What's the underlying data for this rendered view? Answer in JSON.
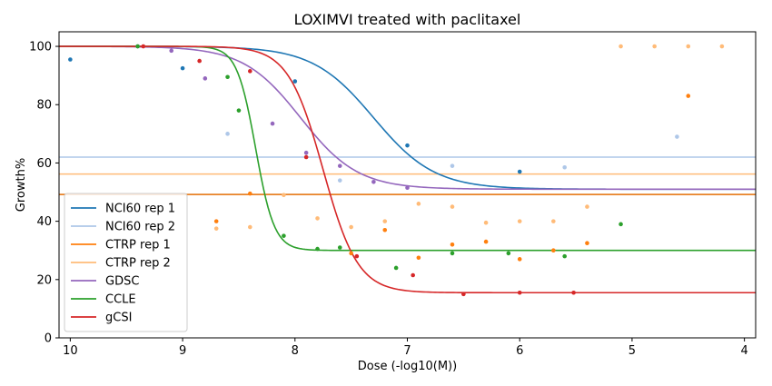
{
  "chart_data": {
    "type": "scatter",
    "title": "LOXIMVI treated with paclitaxel",
    "xlabel": "Dose (-log10(M))",
    "ylabel": "Growth%",
    "xlim": [
      10.1,
      3.9
    ],
    "ylim": [
      0,
      105
    ],
    "x_ticks": [
      10,
      9,
      8,
      7,
      6,
      5,
      4
    ],
    "y_ticks": [
      0,
      20,
      40,
      60,
      80,
      100
    ],
    "legend_position": "lower-left",
    "series": [
      {
        "name": "NCI60 rep 1",
        "color": "#1f77b4",
        "hline": 49.2,
        "curve": {
          "top": 100,
          "bottom": 51.0,
          "ec50": 7.3,
          "hill": 1.6
        },
        "points": [
          [
            10,
            95.5
          ],
          [
            9,
            92.5
          ],
          [
            8,
            88
          ],
          [
            7,
            66
          ],
          [
            6,
            57
          ]
        ]
      },
      {
        "name": "NCI60 rep 2",
        "color": "#aec7e8",
        "hline": 62,
        "points": [
          [
            8.6,
            70
          ],
          [
            7.6,
            54
          ],
          [
            6.6,
            59
          ],
          [
            5.6,
            58.5
          ],
          [
            4.6,
            69
          ]
        ]
      },
      {
        "name": "CTRP rep 1",
        "color": "#ff7f0e",
        "hline": 49.2,
        "points": [
          [
            8.7,
            40
          ],
          [
            8.4,
            49.5
          ],
          [
            7.5,
            29
          ],
          [
            7.2,
            37
          ],
          [
            6.9,
            27.5
          ],
          [
            6.6,
            32
          ],
          [
            6.3,
            33
          ],
          [
            6.0,
            27
          ],
          [
            5.7,
            30
          ],
          [
            5.4,
            32.5
          ],
          [
            4.5,
            83
          ]
        ]
      },
      {
        "name": "CTRP rep 2",
        "color": "#ffbb78",
        "hline": 56.2,
        "points": [
          [
            8.7,
            37.5
          ],
          [
            8.4,
            38
          ],
          [
            8.1,
            49
          ],
          [
            7.8,
            41
          ],
          [
            7.5,
            38
          ],
          [
            7.2,
            40
          ],
          [
            6.9,
            46
          ],
          [
            6.6,
            45
          ],
          [
            6.3,
            39.5
          ],
          [
            6.0,
            40
          ],
          [
            5.7,
            40
          ],
          [
            5.4,
            45
          ],
          [
            5.1,
            100
          ],
          [
            4.8,
            100
          ],
          [
            4.5,
            100
          ],
          [
            4.2,
            100
          ]
        ]
      },
      {
        "name": "GDSC",
        "color": "#9467bd",
        "curve": {
          "top": 100,
          "bottom": 51.0,
          "ec50": 7.95,
          "hill": 1.7
        },
        "points": [
          [
            9.4,
            100
          ],
          [
            9.1,
            98.5
          ],
          [
            8.8,
            89
          ],
          [
            8.2,
            73.5
          ],
          [
            7.9,
            63.5
          ],
          [
            7.6,
            59
          ],
          [
            7.3,
            53.5
          ],
          [
            7.0,
            51.5
          ]
        ]
      },
      {
        "name": "CCLE",
        "color": "#2ca02c",
        "curve": {
          "top": 100,
          "bottom": 30,
          "ec50": 8.35,
          "hill": 5.2
        },
        "points": [
          [
            9.4,
            100
          ],
          [
            8.6,
            89.5
          ],
          [
            8.5,
            78
          ],
          [
            8.1,
            35
          ],
          [
            7.8,
            30.5
          ],
          [
            7.6,
            31
          ],
          [
            7.1,
            24
          ],
          [
            6.6,
            29
          ],
          [
            6.1,
            29
          ],
          [
            5.6,
            28
          ],
          [
            5.1,
            39
          ]
        ]
      },
      {
        "name": "gCSI",
        "color": "#d62728",
        "curve": {
          "top": 100,
          "bottom": 15.5,
          "ec50": 7.75,
          "hill": 2.8
        },
        "points": [
          [
            9.35,
            100
          ],
          [
            8.85,
            95
          ],
          [
            8.4,
            91.5
          ],
          [
            7.9,
            62
          ],
          [
            7.45,
            28
          ],
          [
            6.95,
            21.5
          ],
          [
            6.5,
            15
          ],
          [
            6.0,
            15.5
          ],
          [
            5.52,
            15.5
          ]
        ]
      }
    ]
  }
}
